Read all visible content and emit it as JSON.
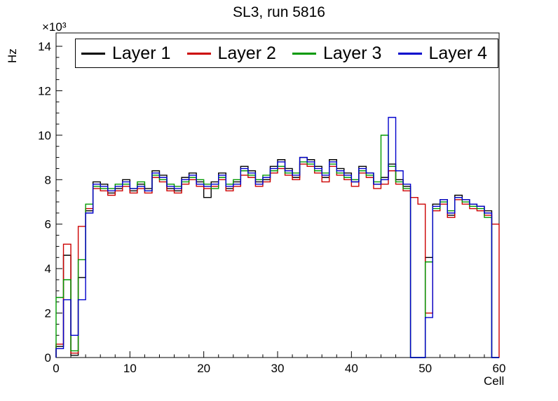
{
  "chart_data": {
    "type": "line",
    "style": "step-histogram",
    "title": "SL3, run 5816",
    "xlabel": "Cell",
    "ylabel": "Hz",
    "y_multiplier": "×10³",
    "y_unit": "10^3 Hz",
    "xlim": [
      0,
      60
    ],
    "ylim": [
      0,
      14.6
    ],
    "x_ticks": [
      0,
      10,
      20,
      30,
      40,
      50,
      60
    ],
    "y_ticks": [
      0,
      2,
      4,
      6,
      8,
      10,
      12,
      14
    ],
    "grid": false,
    "legend_position": "top-inside",
    "series": [
      {
        "name": "Layer 1",
        "color": "#000000",
        "values": [
          0.5,
          4.6,
          0.1,
          3.6,
          6.6,
          7.9,
          7.8,
          7.4,
          7.6,
          8.0,
          7.5,
          7.8,
          7.6,
          8.4,
          8.2,
          7.6,
          7.5,
          8.1,
          8.3,
          7.9,
          7.2,
          7.9,
          8.3,
          7.6,
          7.9,
          8.6,
          8.4,
          7.9,
          8.0,
          8.6,
          8.9,
          8.5,
          8.1,
          9.0,
          8.9,
          8.6,
          8.1,
          8.9,
          8.5,
          8.3,
          7.9,
          8.6,
          8.3,
          7.8,
          8.1,
          8.7,
          8.0,
          7.7,
          0.0,
          0.0,
          4.5,
          6.9,
          7.1,
          6.4,
          7.3,
          7.1,
          6.9,
          6.8,
          6.6,
          0.0
        ]
      },
      {
        "name": "Layer 2",
        "color": "#cc0000",
        "values": [
          0.6,
          5.1,
          0.2,
          5.9,
          6.7,
          7.6,
          7.5,
          7.3,
          7.5,
          7.7,
          7.4,
          7.6,
          7.4,
          8.1,
          7.9,
          7.5,
          7.4,
          7.8,
          8.0,
          7.7,
          7.6,
          7.7,
          8.0,
          7.5,
          7.7,
          8.2,
          8.1,
          7.7,
          7.9,
          8.3,
          8.5,
          8.2,
          8.0,
          8.7,
          8.6,
          8.3,
          7.9,
          8.6,
          8.2,
          8.0,
          7.7,
          8.3,
          8.1,
          7.6,
          7.8,
          8.4,
          7.8,
          7.5,
          7.2,
          6.9,
          2.0,
          6.6,
          6.9,
          6.3,
          7.1,
          6.9,
          6.7,
          6.6,
          6.4,
          6.0
        ]
      },
      {
        "name": "Layer 3",
        "color": "#009900",
        "values": [
          2.7,
          3.5,
          0.3,
          4.4,
          6.9,
          7.7,
          7.6,
          7.6,
          7.8,
          7.8,
          7.6,
          7.9,
          7.5,
          8.2,
          8.0,
          7.8,
          7.7,
          7.9,
          8.1,
          8.0,
          7.8,
          7.6,
          8.1,
          7.8,
          8.0,
          8.4,
          8.2,
          8.0,
          8.2,
          8.4,
          8.6,
          8.3,
          8.3,
          8.8,
          8.7,
          8.4,
          8.3,
          8.7,
          8.3,
          8.1,
          8.0,
          8.4,
          8.2,
          7.9,
          10.0,
          8.6,
          7.9,
          7.6,
          0.0,
          0.0,
          4.3,
          6.7,
          7.0,
          6.6,
          7.2,
          7.0,
          6.8,
          6.7,
          6.3,
          0.0
        ]
      },
      {
        "name": "Layer 4",
        "color": "#0000cc",
        "values": [
          0.4,
          2.6,
          1.0,
          2.6,
          6.5,
          7.8,
          7.7,
          7.5,
          7.7,
          7.9,
          7.6,
          7.7,
          7.5,
          8.3,
          8.1,
          7.7,
          7.6,
          8.0,
          8.2,
          7.8,
          7.7,
          7.8,
          8.2,
          7.7,
          7.8,
          8.5,
          8.3,
          7.8,
          8.1,
          8.5,
          8.8,
          8.4,
          8.2,
          9.0,
          8.8,
          8.5,
          8.2,
          8.8,
          8.4,
          8.2,
          7.9,
          8.5,
          8.3,
          7.8,
          8.0,
          10.8,
          8.4,
          7.8,
          0.0,
          0.0,
          1.8,
          6.8,
          7.1,
          6.5,
          7.2,
          7.1,
          6.9,
          6.8,
          6.5,
          0.0
        ]
      }
    ]
  }
}
